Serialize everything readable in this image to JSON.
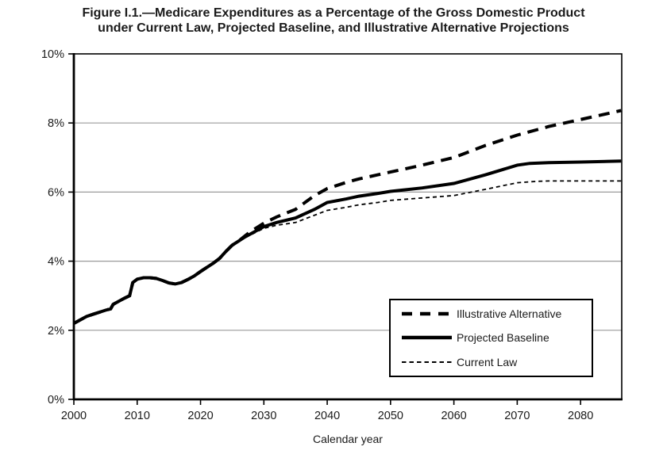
{
  "figure": {
    "title_line1": "Figure I.1.—Medicare Expenditures as a Percentage of the Gross Domestic Product",
    "title_line2": "under Current Law, Projected Baseline, and Illustrative Alternative Projections"
  },
  "chart_data": {
    "type": "line",
    "title": "Figure I.1.—Medicare Expenditures as a Percentage of the Gross Domestic Product under Current Law, Projected Baseline, and Illustrative Alternative Projections",
    "xlabel": "Calendar year",
    "ylabel": "",
    "xlim": [
      2000,
      2086.5
    ],
    "ylim": [
      0,
      10
    ],
    "x_ticks": {
      "years": [
        2000,
        2010,
        2020,
        2030,
        2040,
        2050,
        2060,
        2070,
        2080
      ],
      "labels": [
        "2000",
        "2010",
        "2020",
        "2030",
        "2040",
        "2050",
        "2060",
        "2070",
        "2080"
      ]
    },
    "y_ticks": {
      "values": [
        0,
        2,
        4,
        6,
        8,
        10
      ],
      "labels": [
        "0%",
        "2%",
        "4%",
        "6%",
        "8%",
        "10%"
      ]
    },
    "grid": "horizontal-only",
    "legend_position": "inside-lower-right",
    "colors": {
      "line": "#000000",
      "grid": "#9a9a9a",
      "background": "#ffffff"
    },
    "series": [
      {
        "name": "Illustrative Alternative",
        "style": "thick-dashed",
        "points": [
          [
            2000,
            2.2
          ],
          [
            2001,
            2.3
          ],
          [
            2002,
            2.4
          ],
          [
            2003,
            2.46
          ],
          [
            2004,
            2.52
          ],
          [
            2005,
            2.58
          ],
          [
            2005.8,
            2.62
          ],
          [
            2006.2,
            2.75
          ],
          [
            2007,
            2.83
          ],
          [
            2008,
            2.93
          ],
          [
            2008.8,
            3.0
          ],
          [
            2009.3,
            3.38
          ],
          [
            2010,
            3.48
          ],
          [
            2011,
            3.52
          ],
          [
            2012,
            3.52
          ],
          [
            2013,
            3.5
          ],
          [
            2014,
            3.44
          ],
          [
            2015,
            3.37
          ],
          [
            2016,
            3.34
          ],
          [
            2017,
            3.38
          ],
          [
            2018,
            3.47
          ],
          [
            2019,
            3.57
          ],
          [
            2020,
            3.7
          ],
          [
            2021,
            3.82
          ],
          [
            2022,
            3.94
          ],
          [
            2023,
            4.08
          ],
          [
            2024,
            4.28
          ],
          [
            2025,
            4.46
          ],
          [
            2026,
            4.58
          ],
          [
            2027,
            4.73
          ],
          [
            2028,
            4.87
          ],
          [
            2030,
            5.1
          ],
          [
            2032,
            5.28
          ],
          [
            2035,
            5.5
          ],
          [
            2038,
            5.9
          ],
          [
            2040,
            6.1
          ],
          [
            2043,
            6.28
          ],
          [
            2045,
            6.38
          ],
          [
            2048,
            6.5
          ],
          [
            2050,
            6.58
          ],
          [
            2055,
            6.78
          ],
          [
            2060,
            7.0
          ],
          [
            2065,
            7.35
          ],
          [
            2070,
            7.65
          ],
          [
            2075,
            7.9
          ],
          [
            2080,
            8.1
          ],
          [
            2083,
            8.22
          ],
          [
            2086.4,
            8.36
          ]
        ]
      },
      {
        "name": "Projected Baseline",
        "style": "thick-solid",
        "points": [
          [
            2000,
            2.2
          ],
          [
            2001,
            2.3
          ],
          [
            2002,
            2.4
          ],
          [
            2003,
            2.46
          ],
          [
            2004,
            2.52
          ],
          [
            2005,
            2.58
          ],
          [
            2005.8,
            2.62
          ],
          [
            2006.2,
            2.75
          ],
          [
            2007,
            2.83
          ],
          [
            2008,
            2.93
          ],
          [
            2008.8,
            3.0
          ],
          [
            2009.3,
            3.38
          ],
          [
            2010,
            3.48
          ],
          [
            2011,
            3.52
          ],
          [
            2012,
            3.52
          ],
          [
            2013,
            3.5
          ],
          [
            2014,
            3.44
          ],
          [
            2015,
            3.37
          ],
          [
            2016,
            3.34
          ],
          [
            2017,
            3.38
          ],
          [
            2018,
            3.47
          ],
          [
            2019,
            3.57
          ],
          [
            2020,
            3.7
          ],
          [
            2021,
            3.82
          ],
          [
            2022,
            3.94
          ],
          [
            2023,
            4.08
          ],
          [
            2024,
            4.28
          ],
          [
            2025,
            4.46
          ],
          [
            2026,
            4.58
          ],
          [
            2027,
            4.7
          ],
          [
            2028,
            4.8
          ],
          [
            2030,
            5.0
          ],
          [
            2032,
            5.12
          ],
          [
            2035,
            5.25
          ],
          [
            2038,
            5.5
          ],
          [
            2040,
            5.7
          ],
          [
            2043,
            5.8
          ],
          [
            2045,
            5.88
          ],
          [
            2048,
            5.96
          ],
          [
            2050,
            6.02
          ],
          [
            2055,
            6.12
          ],
          [
            2060,
            6.25
          ],
          [
            2065,
            6.5
          ],
          [
            2070,
            6.78
          ],
          [
            2072,
            6.83
          ],
          [
            2075,
            6.85
          ],
          [
            2080,
            6.87
          ],
          [
            2086.4,
            6.9
          ]
        ]
      },
      {
        "name": "Current Law",
        "style": "thin-dashed",
        "points": [
          [
            2000,
            2.2
          ],
          [
            2001,
            2.3
          ],
          [
            2002,
            2.4
          ],
          [
            2003,
            2.46
          ],
          [
            2004,
            2.52
          ],
          [
            2005,
            2.58
          ],
          [
            2005.8,
            2.62
          ],
          [
            2006.2,
            2.75
          ],
          [
            2007,
            2.83
          ],
          [
            2008,
            2.93
          ],
          [
            2008.8,
            3.0
          ],
          [
            2009.3,
            3.38
          ],
          [
            2010,
            3.48
          ],
          [
            2011,
            3.52
          ],
          [
            2012,
            3.52
          ],
          [
            2013,
            3.5
          ],
          [
            2014,
            3.44
          ],
          [
            2015,
            3.37
          ],
          [
            2016,
            3.34
          ],
          [
            2017,
            3.38
          ],
          [
            2018,
            3.47
          ],
          [
            2019,
            3.57
          ],
          [
            2020,
            3.7
          ],
          [
            2021,
            3.82
          ],
          [
            2022,
            3.94
          ],
          [
            2023,
            4.08
          ],
          [
            2024,
            4.28
          ],
          [
            2025,
            4.46
          ],
          [
            2026,
            4.58
          ],
          [
            2027,
            4.68
          ],
          [
            2028,
            4.77
          ],
          [
            2030,
            4.95
          ],
          [
            2032,
            5.04
          ],
          [
            2035,
            5.12
          ],
          [
            2038,
            5.33
          ],
          [
            2040,
            5.47
          ],
          [
            2043,
            5.56
          ],
          [
            2045,
            5.63
          ],
          [
            2048,
            5.7
          ],
          [
            2050,
            5.76
          ],
          [
            2055,
            5.83
          ],
          [
            2060,
            5.9
          ],
          [
            2065,
            6.08
          ],
          [
            2070,
            6.27
          ],
          [
            2073,
            6.31
          ],
          [
            2075,
            6.32
          ],
          [
            2080,
            6.32
          ],
          [
            2086.4,
            6.32
          ]
        ]
      }
    ]
  }
}
